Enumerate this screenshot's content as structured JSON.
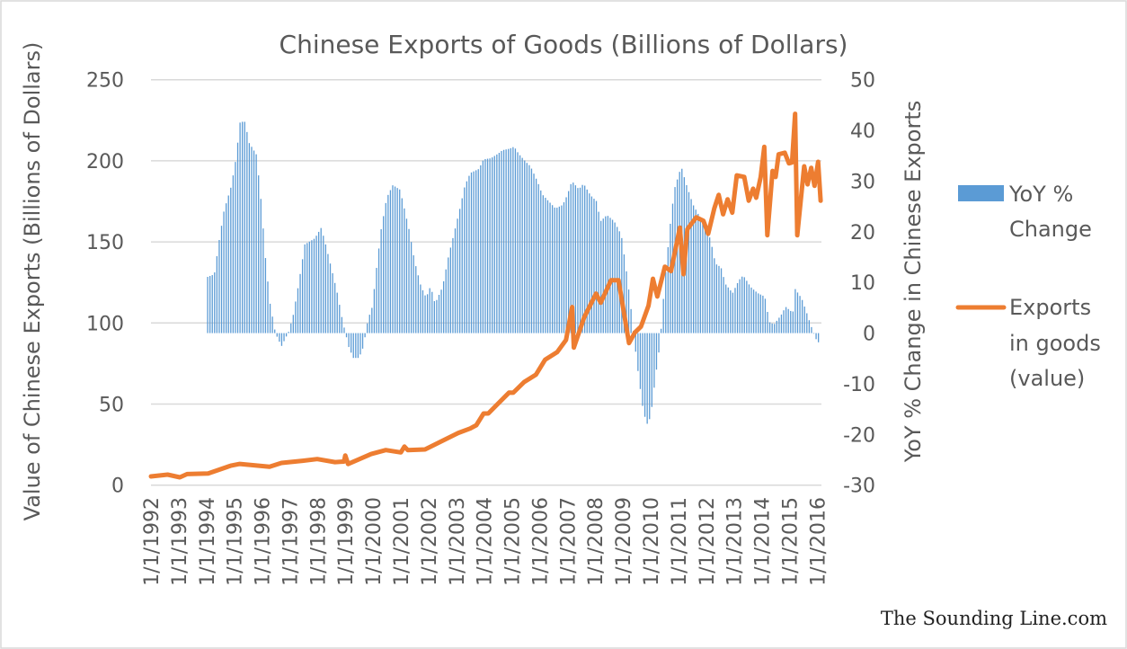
{
  "chart_data": {
    "type": "bar+line",
    "title": "Chinese Exports of Goods (Billions of Dollars)",
    "ylabel": "Value of Chinese Exports (Billions of Dollars)",
    "y2label": "YoY % Change in Chinese Exports",
    "ylim": [
      0,
      250
    ],
    "yticks": [
      0,
      50,
      100,
      150,
      200,
      250
    ],
    "y2lim": [
      -30,
      50
    ],
    "y2ticks": [
      -30,
      -20,
      -10,
      0,
      10,
      20,
      30,
      40,
      50
    ],
    "xlim": [
      1992,
      2016.15
    ],
    "xticks": [
      "1/1/1992",
      "1/1/1993",
      "1/1/1994",
      "1/1/1995",
      "1/1/1996",
      "1/1/1997",
      "1/1/1998",
      "1/1/1999",
      "1/1/2000",
      "1/1/2001",
      "1/1/2002",
      "1/1/2003",
      "1/1/2004",
      "1/1/2005",
      "1/1/2006",
      "1/1/2007",
      "1/1/2008",
      "1/1/2009",
      "1/1/2010",
      "1/1/2011",
      "1/1/2012",
      "1/1/2013",
      "1/1/2014",
      "1/1/2015",
      "1/1/2016"
    ],
    "grid": true,
    "legend_position": "right",
    "colors": {
      "bars": "#5B9BD5",
      "line": "#ED7D31"
    },
    "series": [
      {
        "name": "YoY % Change",
        "type": "bar",
        "axis": "right",
        "points": [
          [
            1994.04,
            11.1
          ],
          [
            1994.28,
            11.6
          ],
          [
            1994.46,
            18.5
          ],
          [
            1994.63,
            24.2
          ],
          [
            1994.89,
            29
          ],
          [
            1995.05,
            34.1
          ],
          [
            1995.21,
            41.7
          ],
          [
            1995.38,
            41.7
          ],
          [
            1995.54,
            37.5
          ],
          [
            1995.8,
            35.2
          ],
          [
            1995.96,
            26.3
          ],
          [
            1996.12,
            15
          ],
          [
            1996.28,
            6.1
          ],
          [
            1996.48,
            0
          ],
          [
            1996.7,
            -2.6
          ],
          [
            1996.96,
            0.3
          ],
          [
            1997.12,
            3.5
          ],
          [
            1997.32,
            9.8
          ],
          [
            1997.54,
            17.5
          ],
          [
            1997.9,
            18.7
          ],
          [
            1998.13,
            20.8
          ],
          [
            1998.29,
            17.5
          ],
          [
            1998.48,
            13.2
          ],
          [
            1998.71,
            7.9
          ],
          [
            1998.9,
            2.4
          ],
          [
            1999.13,
            -2.9
          ],
          [
            1999.29,
            -4.9
          ],
          [
            1999.49,
            -4.9
          ],
          [
            1999.65,
            -2.7
          ],
          [
            1999.81,
            2.6
          ],
          [
            1999.97,
            5.2
          ],
          [
            2000.13,
            13.2
          ],
          [
            2000.29,
            20.5
          ],
          [
            2000.49,
            26.7
          ],
          [
            2000.71,
            29.2
          ],
          [
            2000.97,
            28.3
          ],
          [
            2001.14,
            24.2
          ],
          [
            2001.3,
            20.3
          ],
          [
            2001.49,
            14.3
          ],
          [
            2001.72,
            9.3
          ],
          [
            2001.91,
            7
          ],
          [
            2002.07,
            9.3
          ],
          [
            2002.23,
            5.8
          ],
          [
            2002.5,
            9.1
          ],
          [
            2002.72,
            15.3
          ],
          [
            2002.92,
            19.8
          ],
          [
            2003.14,
            24.9
          ],
          [
            2003.3,
            29
          ],
          [
            2003.5,
            31.6
          ],
          [
            2003.81,
            32.4
          ],
          [
            2003.98,
            34.3
          ],
          [
            2004.24,
            34.5
          ],
          [
            2004.5,
            35.4
          ],
          [
            2004.66,
            36.1
          ],
          [
            2004.92,
            36.4
          ],
          [
            2005.08,
            36.8
          ],
          [
            2005.24,
            35.4
          ],
          [
            2005.5,
            33.8
          ],
          [
            2005.67,
            32.9
          ],
          [
            2005.93,
            29.8
          ],
          [
            2006.09,
            27.4
          ],
          [
            2006.31,
            26.1
          ],
          [
            2006.57,
            24.6
          ],
          [
            2006.83,
            25.3
          ],
          [
            2006.99,
            27.2
          ],
          [
            2007.16,
            30
          ],
          [
            2007.41,
            28.4
          ],
          [
            2007.58,
            29.5
          ],
          [
            2007.83,
            27.2
          ],
          [
            2008.09,
            25.8
          ],
          [
            2008.16,
            21.9
          ],
          [
            2008.42,
            23.3
          ],
          [
            2008.68,
            22.1
          ],
          [
            2008.94,
            19.4
          ],
          [
            2009.1,
            13.2
          ],
          [
            2009.26,
            6.3
          ],
          [
            2009.42,
            -2
          ],
          [
            2009.58,
            -9.3
          ],
          [
            2009.74,
            -15.7
          ],
          [
            2009.88,
            -18
          ],
          [
            2010.0,
            -16.4
          ],
          [
            2010.16,
            -9.1
          ],
          [
            2010.33,
            -2.2
          ],
          [
            2010.49,
            9.1
          ],
          [
            2010.68,
            20.3
          ],
          [
            2010.85,
            28.4
          ],
          [
            2011.1,
            32.9
          ],
          [
            2011.26,
            29.7
          ],
          [
            2011.52,
            25.4
          ],
          [
            2011.78,
            22.8
          ],
          [
            2012.01,
            21
          ],
          [
            2012.17,
            18
          ],
          [
            2012.33,
            13.7
          ],
          [
            2012.53,
            13
          ],
          [
            2012.69,
            9.7
          ],
          [
            2012.95,
            7.9
          ],
          [
            2013.17,
            10.4
          ],
          [
            2013.33,
            11.4
          ],
          [
            2013.6,
            9.1
          ],
          [
            2013.85,
            7.9
          ],
          [
            2014.11,
            7.2
          ],
          [
            2014.27,
            2.2
          ],
          [
            2014.44,
            1.7
          ],
          [
            2014.7,
            3.6
          ],
          [
            2014.86,
            5.2
          ],
          [
            2015.12,
            4
          ],
          [
            2015.18,
            8.9
          ],
          [
            2015.44,
            6.8
          ],
          [
            2015.6,
            4.3
          ],
          [
            2015.77,
            1.5
          ],
          [
            2015.93,
            -1
          ],
          [
            2016.12,
            -2.4
          ]
        ]
      },
      {
        "name": "Exports in goods (value)",
        "type": "line",
        "axis": "left",
        "points": [
          [
            1992.0,
            5.4
          ],
          [
            1992.6,
            6.5
          ],
          [
            1993.04,
            4.8
          ],
          [
            1993.3,
            6.8
          ],
          [
            1994.06,
            7.2
          ],
          [
            1994.87,
            12
          ],
          [
            1995.2,
            13.1
          ],
          [
            1996.27,
            11.3
          ],
          [
            1996.7,
            13.7
          ],
          [
            1997.46,
            15
          ],
          [
            1997.99,
            16.1
          ],
          [
            1998.63,
            14.2
          ],
          [
            1998.95,
            14.5
          ],
          [
            1999.0,
            18.3
          ],
          [
            1999.1,
            13
          ],
          [
            1999.93,
            19.2
          ],
          [
            2000.46,
            21.6
          ],
          [
            2001.0,
            20.2
          ],
          [
            2001.13,
            23.8
          ],
          [
            2001.25,
            21.6
          ],
          [
            2001.87,
            22
          ],
          [
            2002.53,
            27.6
          ],
          [
            2003.07,
            32.2
          ],
          [
            2003.5,
            34.9
          ],
          [
            2003.72,
            37
          ],
          [
            2003.98,
            44.2
          ],
          [
            2004.15,
            44.2
          ],
          [
            2004.47,
            49.7
          ],
          [
            2004.9,
            57.1
          ],
          [
            2005.05,
            57
          ],
          [
            2005.44,
            63.6
          ],
          [
            2005.87,
            68.2
          ],
          [
            2006.2,
            77.4
          ],
          [
            2006.63,
            82
          ],
          [
            2006.95,
            89.5
          ],
          [
            2007.17,
            109.8
          ],
          [
            2007.23,
            84.8
          ],
          [
            2007.6,
            103.3
          ],
          [
            2008.03,
            118.1
          ],
          [
            2008.2,
            112.5
          ],
          [
            2008.57,
            126.4
          ],
          [
            2008.84,
            126.4
          ],
          [
            2009.22,
            87.6
          ],
          [
            2009.43,
            94.1
          ],
          [
            2009.65,
            97.8
          ],
          [
            2009.92,
            110.7
          ],
          [
            2010.08,
            127.3
          ],
          [
            2010.24,
            116.3
          ],
          [
            2010.51,
            134.7
          ],
          [
            2010.73,
            132
          ],
          [
            2011.05,
            158.8
          ],
          [
            2011.18,
            130.1
          ],
          [
            2011.32,
            157.8
          ],
          [
            2011.64,
            165.2
          ],
          [
            2011.9,
            163
          ],
          [
            2012.07,
            155
          ],
          [
            2012.29,
            170.7
          ],
          [
            2012.45,
            179
          ],
          [
            2012.61,
            167
          ],
          [
            2012.77,
            176.3
          ],
          [
            2012.94,
            168
          ],
          [
            2013.1,
            191
          ],
          [
            2013.37,
            190.1
          ],
          [
            2013.53,
            175.4
          ],
          [
            2013.69,
            182.8
          ],
          [
            2013.8,
            177.2
          ],
          [
            2013.96,
            190
          ],
          [
            2014.09,
            208.6
          ],
          [
            2014.2,
            154.1
          ],
          [
            2014.39,
            193.8
          ],
          [
            2014.5,
            190
          ],
          [
            2014.61,
            204
          ],
          [
            2014.83,
            205
          ],
          [
            2014.98,
            198.4
          ],
          [
            2015.09,
            199
          ],
          [
            2015.2,
            229
          ],
          [
            2015.28,
            154.1
          ],
          [
            2015.53,
            196.6
          ],
          [
            2015.65,
            185.5
          ],
          [
            2015.78,
            195.7
          ],
          [
            2015.9,
            184.6
          ],
          [
            2016.03,
            199.4
          ],
          [
            2016.12,
            175.4
          ]
        ]
      }
    ]
  },
  "legend": {
    "items": [
      {
        "lines": [
          "YoY %",
          "Change"
        ]
      },
      {
        "lines": [
          "Exports",
          "in goods",
          "(value)"
        ]
      }
    ]
  },
  "watermark": "The Sounding Line.com"
}
